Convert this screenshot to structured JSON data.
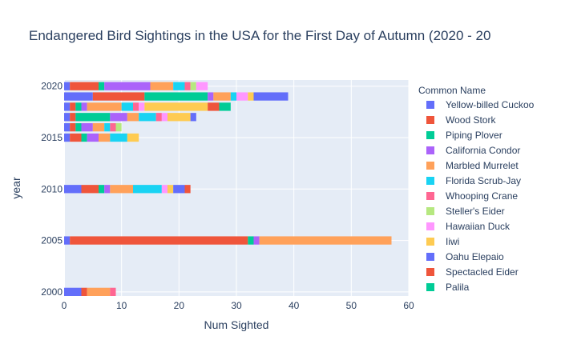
{
  "chart_data": {
    "type": "bar",
    "orientation": "horizontal",
    "barmode": "stack",
    "title": "Endangered Bird Sightings in the USA for the First Day of Autumn (2020 - 20",
    "xlabel": "Num Sighted",
    "ylabel": "year",
    "xlim": [
      0,
      60
    ],
    "ylim": [
      1999.6,
      2020.6
    ],
    "x_ticks": [
      0,
      10,
      20,
      30,
      40,
      50,
      60
    ],
    "y_ticks": [
      2000,
      2005,
      2010,
      2015,
      2020
    ],
    "grid": true,
    "legend_title": "Common Name",
    "legend_position": "right",
    "series": [
      {
        "name": "Yellow-billed Cuckoo",
        "color": "#636efa",
        "values": {
          "2000": 3,
          "2005": 1,
          "2010": 3,
          "2015": 1,
          "2016": 1,
          "2017": 1,
          "2018": 1,
          "2019": 5,
          "2020": 1
        }
      },
      {
        "name": "Wood Stork",
        "color": "#EF553B",
        "values": {
          "2000": 1,
          "2005": 31,
          "2010": 3,
          "2015": 2,
          "2016": 1,
          "2017": 1,
          "2018": 1,
          "2019": 9,
          "2020": 5
        }
      },
      {
        "name": "Piping Plover",
        "color": "#00cc96",
        "values": {
          "2000": 0,
          "2005": 1,
          "2010": 1,
          "2015": 1,
          "2016": 1,
          "2017": 6,
          "2018": 1,
          "2019": 11,
          "2020": 1
        }
      },
      {
        "name": "California Condor",
        "color": "#ab63fa",
        "values": {
          "2000": 0,
          "2005": 1,
          "2010": 1,
          "2015": 2,
          "2016": 2,
          "2017": 3,
          "2018": 1,
          "2019": 1,
          "2020": 8
        }
      },
      {
        "name": "Marbled Murrelet",
        "color": "#FFA15A",
        "values": {
          "2000": 4,
          "2005": 23,
          "2010": 4,
          "2015": 2,
          "2016": 2,
          "2017": 2,
          "2018": 6,
          "2019": 3,
          "2020": 4
        }
      },
      {
        "name": "Florida Scrub-Jay",
        "color": "#19d3f3",
        "values": {
          "2000": 0,
          "2005": 0,
          "2010": 5,
          "2015": 3,
          "2016": 1,
          "2017": 3,
          "2018": 2,
          "2019": 1,
          "2020": 2
        }
      },
      {
        "name": "Whooping Crane",
        "color": "#FF6692",
        "values": {
          "2000": 1,
          "2005": 0,
          "2010": 0,
          "2015": 0,
          "2016": 1,
          "2017": 1,
          "2018": 1,
          "2019": 0,
          "2020": 1
        }
      },
      {
        "name": "Steller's Eider",
        "color": "#B6E880",
        "values": {
          "2000": 0,
          "2005": 0,
          "2010": 0,
          "2015": 0,
          "2016": 1,
          "2017": 0,
          "2018": 0,
          "2019": 0,
          "2020": 1
        }
      },
      {
        "name": "Hawaiian Duck",
        "color": "#FF97FF",
        "values": {
          "2000": 0,
          "2005": 0,
          "2010": 1,
          "2015": 0,
          "2016": 0,
          "2017": 1,
          "2018": 1,
          "2019": 2,
          "2020": 2
        }
      },
      {
        "name": "Iiwi",
        "color": "#FECB52",
        "values": {
          "2000": 0,
          "2005": 0,
          "2010": 1,
          "2015": 2,
          "2016": 0,
          "2017": 4,
          "2018": 11,
          "2019": 1,
          "2020": 0
        }
      },
      {
        "name": "Oahu Elepaio",
        "color": "#636efa",
        "values": {
          "2000": 0,
          "2005": 0,
          "2010": 2,
          "2015": 0,
          "2016": 0,
          "2017": 1,
          "2018": 0,
          "2019": 6,
          "2020": 0
        }
      },
      {
        "name": "Spectacled Eider",
        "color": "#EF553B",
        "values": {
          "2000": 0,
          "2005": 0,
          "2010": 1,
          "2015": 0,
          "2016": 0,
          "2017": 0,
          "2018": 2,
          "2019": 0,
          "2020": 0
        }
      },
      {
        "name": "Palila",
        "color": "#00cc96",
        "values": {
          "2000": 0,
          "2005": 0,
          "2010": 0,
          "2015": 0,
          "2016": 0,
          "2017": 0,
          "2018": 2,
          "2019": 0,
          "2020": 0
        }
      }
    ]
  }
}
